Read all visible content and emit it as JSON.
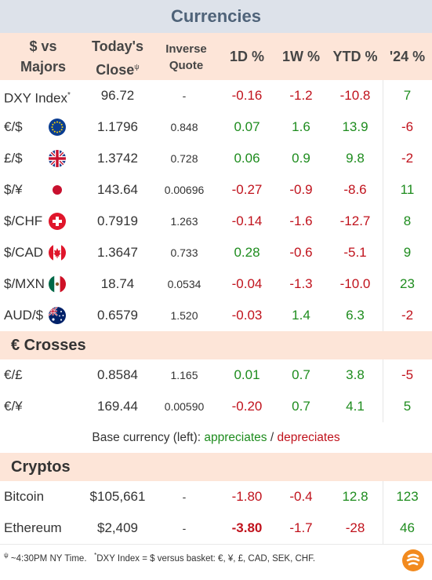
{
  "title": "Currencies",
  "header": {
    "col_label_line1": "$ vs",
    "col_label_line2": "Majors",
    "col_close_line1": "Today's",
    "col_close_line2": "Close",
    "col_close_mark": "ψ",
    "col_inv_line1": "Inverse",
    "col_inv_line2": "Quote",
    "col_1d": "1D %",
    "col_1w": "1W %",
    "col_ytd": "YTD %",
    "col_24": "'24 %"
  },
  "majors": [
    {
      "label": "DXY Index",
      "mark": "*",
      "flag": "",
      "close": "96.72",
      "inverse": "-",
      "d1": "-0.16",
      "w1": "-1.2",
      "ytd": "-10.8",
      "y24": "7"
    },
    {
      "label": "€/$",
      "mark": "",
      "flag": "eu-flag-icon",
      "close": "1.1796",
      "inverse": "0.848",
      "d1": "0.07",
      "w1": "1.6",
      "ytd": "13.9",
      "y24": "-6"
    },
    {
      "label": "£/$",
      "mark": "",
      "flag": "uk-flag-icon",
      "close": "1.3742",
      "inverse": "0.728",
      "d1": "0.06",
      "w1": "0.9",
      "ytd": "9.8",
      "y24": "-2"
    },
    {
      "label": "$/¥",
      "mark": "",
      "flag": "japan-flag-icon",
      "close": "143.64",
      "inverse": "0.00696",
      "d1": "-0.27",
      "w1": "-0.9",
      "ytd": "-8.6",
      "y24": "11"
    },
    {
      "label": "$/CHF",
      "mark": "",
      "flag": "swiss-flag-icon",
      "close": "0.7919",
      "inverse": "1.263",
      "d1": "-0.14",
      "w1": "-1.6",
      "ytd": "-12.7",
      "y24": "8"
    },
    {
      "label": "$/CAD",
      "mark": "",
      "flag": "canada-flag-icon",
      "close": "1.3647",
      "inverse": "0.733",
      "d1": "0.28",
      "w1": "-0.6",
      "ytd": "-5.1",
      "y24": "9"
    },
    {
      "label": "$/MXN",
      "mark": "",
      "flag": "mexico-flag-icon",
      "close": "18.74",
      "inverse": "0.0534",
      "d1": "-0.04",
      "w1": "-1.3",
      "ytd": "-10.0",
      "y24": "23"
    },
    {
      "label": "AUD/$",
      "mark": "",
      "flag": "australia-flag-icon",
      "close": "0.6579",
      "inverse": "1.520",
      "d1": "-0.03",
      "w1": "1.4",
      "ytd": "6.3",
      "y24": "-2"
    }
  ],
  "crosses_title": "€ Crosses",
  "crosses": [
    {
      "label": "€/£",
      "close": "0.8584",
      "inverse": "1.165",
      "d1": "0.01",
      "w1": "0.7",
      "ytd": "3.8",
      "y24": "-5"
    },
    {
      "label": "€/¥",
      "close": "169.44",
      "inverse": "0.00590",
      "d1": "-0.20",
      "w1": "0.7",
      "ytd": "4.1",
      "y24": "5"
    }
  ],
  "legend": {
    "prefix": "Base currency (left):",
    "appreciates": "appreciates",
    "sep": "/",
    "depreciates": "depreciates"
  },
  "cryptos_title": "Cryptos",
  "cryptos": [
    {
      "label": "Bitcoin",
      "close": "$105,661",
      "inverse": "-",
      "d1": "-1.80",
      "w1": "-0.4",
      "ytd": "12.8",
      "y24": "123"
    },
    {
      "label": "Ethereum",
      "close": "$2,409",
      "inverse": "-",
      "d1": "-3.80",
      "w1": "-1.7",
      "ytd": "-28",
      "y24": "46"
    }
  ],
  "footer": {
    "mark1": "ψ",
    "note1": "~4:30PM NY Time.",
    "mark2": "*",
    "note2": "DXY Index = $ versus basket: €, ¥, £, CAD, SEK, CHF."
  },
  "colors": {
    "positive": "#1e8c1e",
    "negative": "#c0121c",
    "header_bg": "#fde5d8",
    "title_bg": "#dde2ea"
  }
}
